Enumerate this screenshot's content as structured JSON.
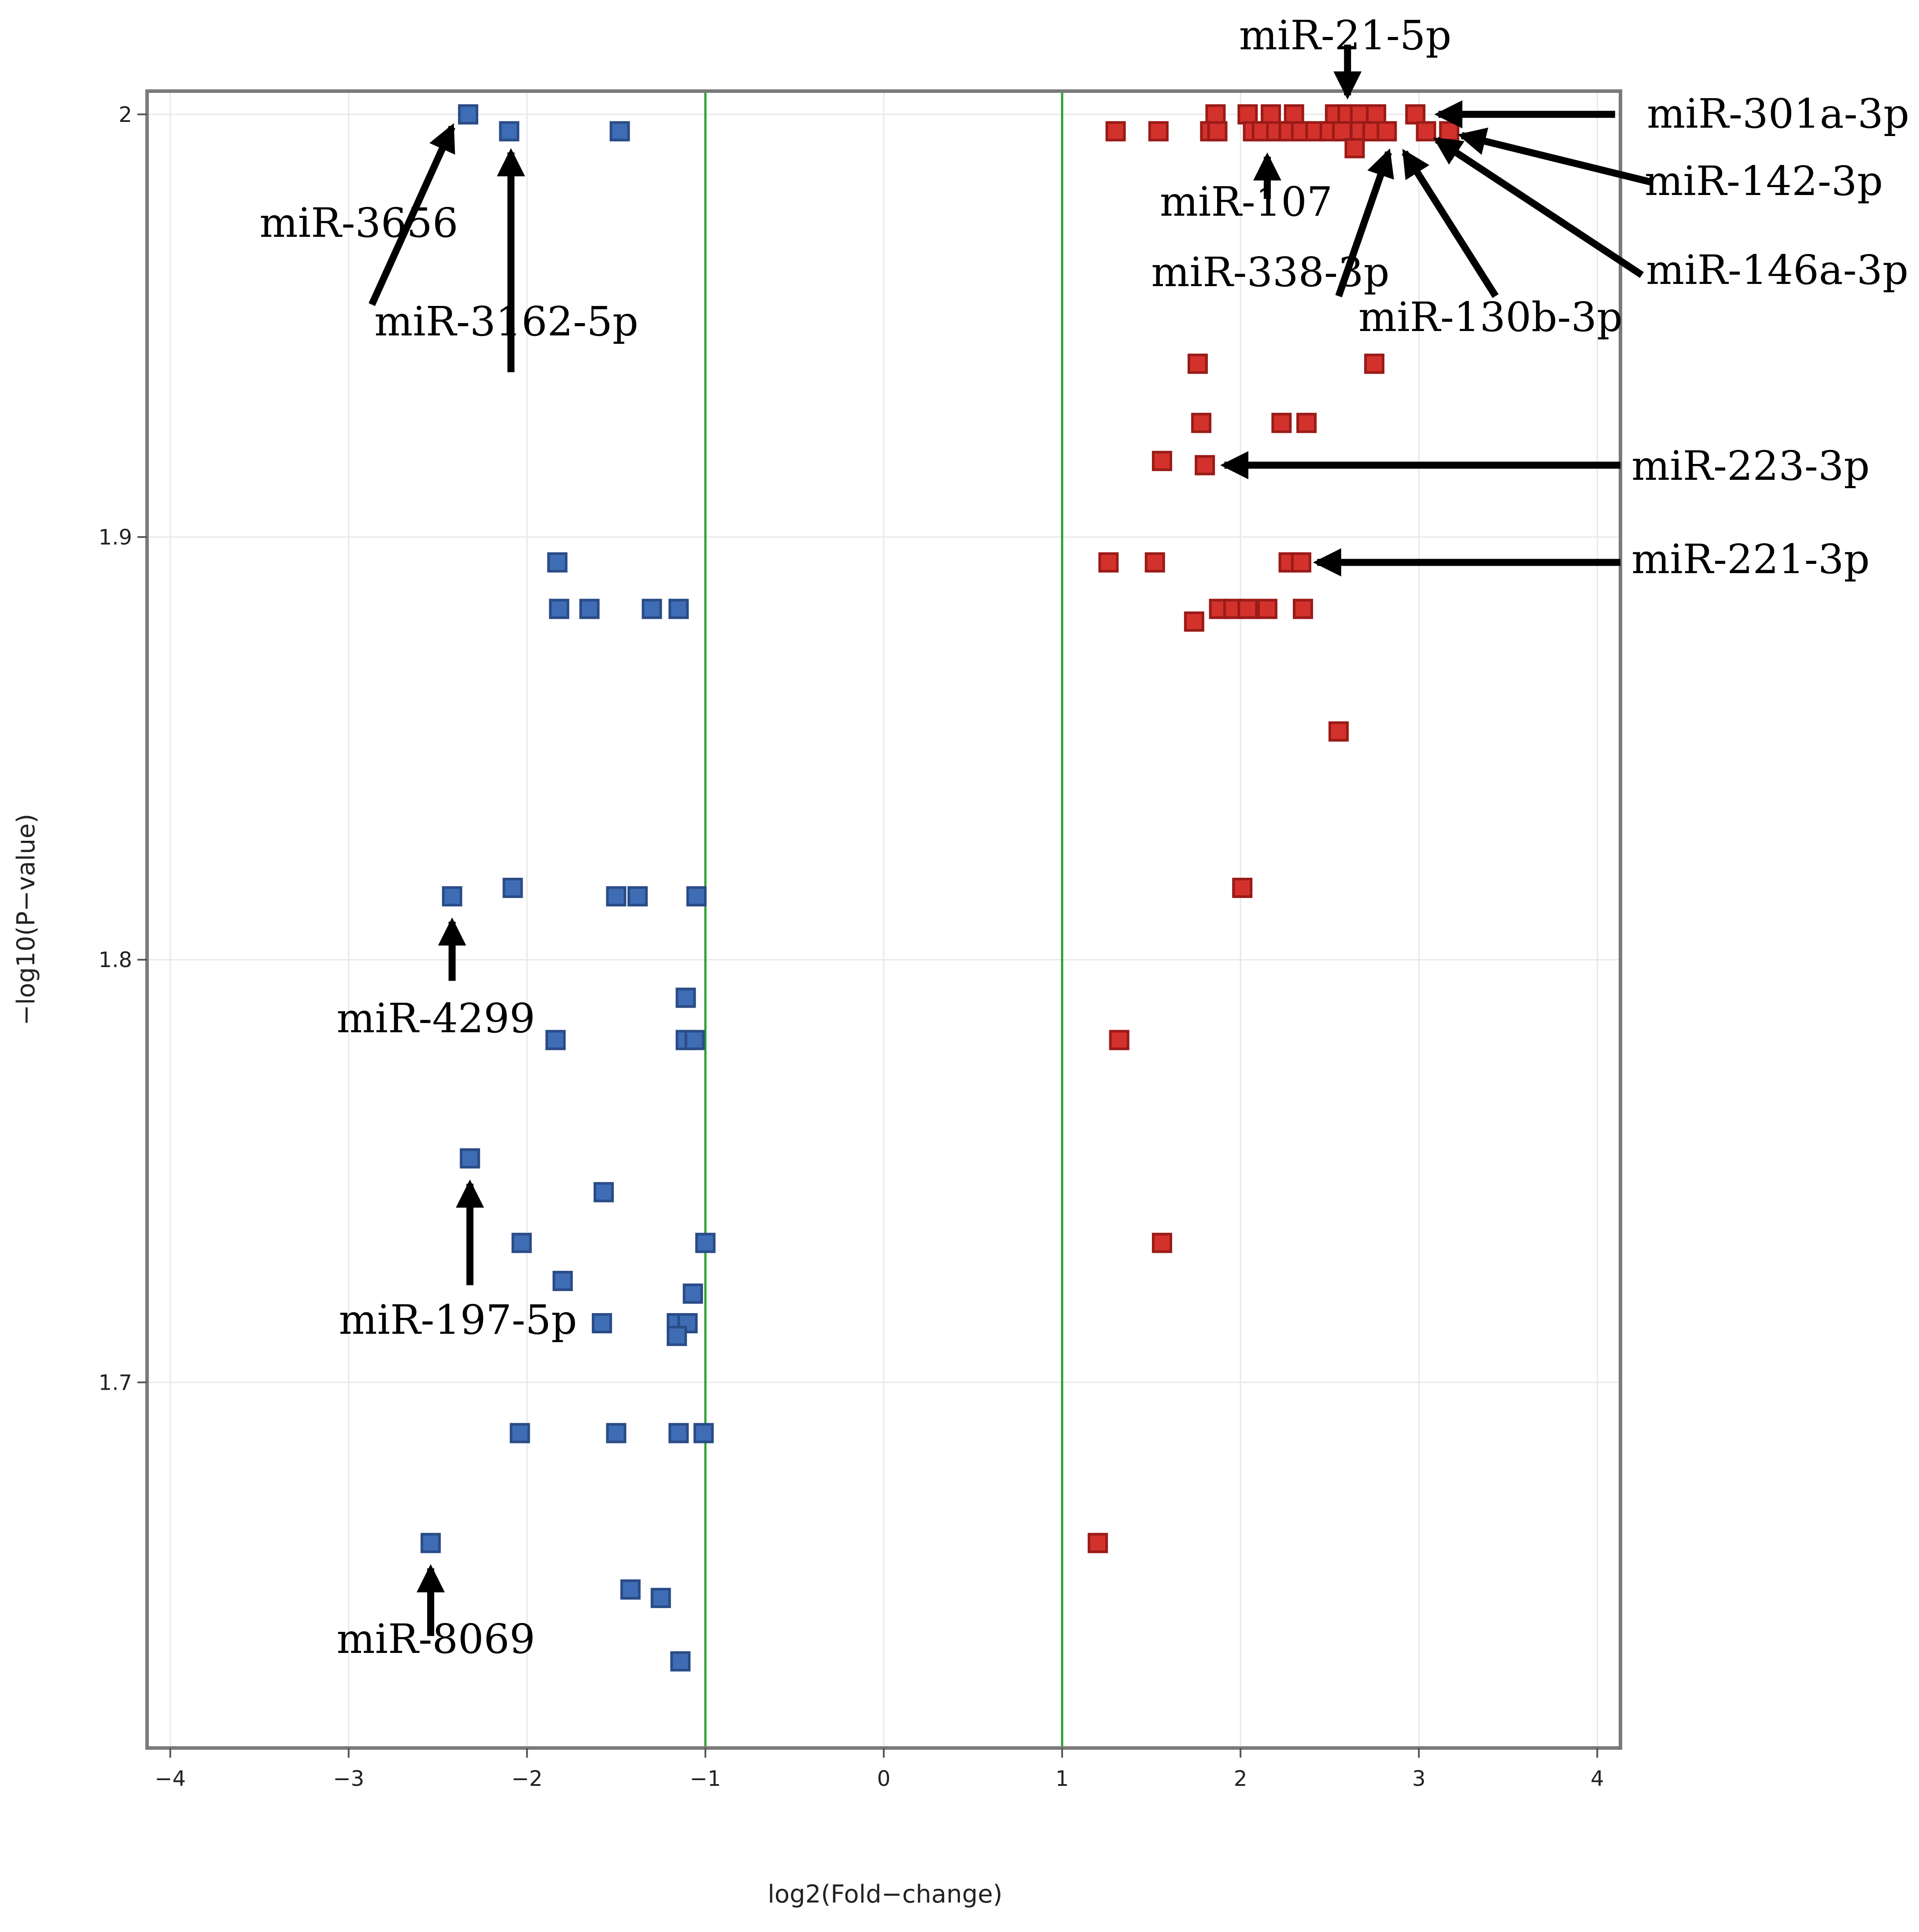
{
  "chart_data": {
    "type": "scatter",
    "title": "",
    "xlabel": "log2(Fold−change)",
    "ylabel": "−log10(P−value)",
    "xlim": [
      -4.13,
      4.13
    ],
    "ylim": [
      1.6135,
      2.0055
    ],
    "x_ticks": [
      -4,
      -3,
      -2,
      -1,
      0,
      1,
      2,
      3,
      4
    ],
    "x_tick_labels": [
      "−4",
      "−3",
      "−2",
      "−1",
      "0",
      "1",
      "2",
      "3",
      "4"
    ],
    "y_ticks": [
      1.7,
      1.8,
      1.9,
      2.0
    ],
    "y_tick_labels": [
      "1.7",
      "1.8",
      "1.9",
      "2"
    ],
    "grid": true,
    "threshold_lines": [
      -1,
      1
    ],
    "colors": {
      "down": "#3f6db5",
      "down_edge": "#2a4c87",
      "up": "#d3322c",
      "up_edge": "#9a1b17",
      "threshold": "#2ca02c",
      "grid": "#e8e8e8",
      "frame": "#7a7a7a"
    },
    "series": [
      {
        "name": "down",
        "points": [
          [
            -2.33,
            2.0
          ],
          [
            -2.1,
            1.996
          ],
          [
            -1.48,
            1.996
          ],
          [
            -1.83,
            1.894
          ],
          [
            -1.82,
            1.883
          ],
          [
            -1.65,
            1.883
          ],
          [
            -1.3,
            1.883
          ],
          [
            -1.15,
            1.883
          ],
          [
            -2.42,
            1.815
          ],
          [
            -2.08,
            1.817
          ],
          [
            -1.5,
            1.815
          ],
          [
            -1.38,
            1.815
          ],
          [
            -1.05,
            1.815
          ],
          [
            -1.11,
            1.791
          ],
          [
            -1.84,
            1.781
          ],
          [
            -1.11,
            1.781
          ],
          [
            -1.06,
            1.781
          ],
          [
            -2.32,
            1.753
          ],
          [
            -1.57,
            1.745
          ],
          [
            -2.03,
            1.733
          ],
          [
            -1.0,
            1.733
          ],
          [
            -1.8,
            1.724
          ],
          [
            -1.07,
            1.721
          ],
          [
            -1.58,
            1.714
          ],
          [
            -1.16,
            1.714
          ],
          [
            -1.1,
            1.714
          ],
          [
            -1.16,
            1.711
          ],
          [
            -2.04,
            1.688
          ],
          [
            -1.5,
            1.688
          ],
          [
            -1.15,
            1.688
          ],
          [
            -1.01,
            1.688
          ],
          [
            -2.54,
            1.662
          ],
          [
            -1.42,
            1.651
          ],
          [
            -1.25,
            1.649
          ],
          [
            -1.14,
            1.634
          ]
        ]
      },
      {
        "name": "up",
        "points": [
          [
            1.86,
            2.0
          ],
          [
            2.04,
            2.0
          ],
          [
            2.17,
            2.0
          ],
          [
            2.3,
            2.0
          ],
          [
            2.53,
            2.0
          ],
          [
            2.6,
            2.0
          ],
          [
            2.67,
            2.0
          ],
          [
            2.76,
            2.0
          ],
          [
            2.98,
            2.0
          ],
          [
            1.3,
            1.996
          ],
          [
            1.54,
            1.996
          ],
          [
            1.83,
            1.996
          ],
          [
            1.87,
            1.996
          ],
          [
            2.07,
            1.996
          ],
          [
            2.12,
            1.996
          ],
          [
            2.2,
            1.996
          ],
          [
            2.27,
            1.996
          ],
          [
            2.34,
            1.996
          ],
          [
            2.42,
            1.996
          ],
          [
            2.5,
            1.996
          ],
          [
            2.57,
            1.996
          ],
          [
            2.67,
            1.996
          ],
          [
            2.74,
            1.996
          ],
          [
            2.82,
            1.996
          ],
          [
            3.04,
            1.996
          ],
          [
            3.17,
            1.996
          ],
          [
            2.64,
            1.992
          ],
          [
            1.76,
            1.941
          ],
          [
            2.75,
            1.941
          ],
          [
            1.78,
            1.927
          ],
          [
            2.23,
            1.927
          ],
          [
            2.37,
            1.927
          ],
          [
            1.56,
            1.918
          ],
          [
            1.8,
            1.917
          ],
          [
            1.26,
            1.894
          ],
          [
            1.52,
            1.894
          ],
          [
            2.27,
            1.894
          ],
          [
            2.34,
            1.894
          ],
          [
            1.88,
            1.883
          ],
          [
            1.96,
            1.883
          ],
          [
            2.04,
            1.883
          ],
          [
            2.15,
            1.883
          ],
          [
            2.35,
            1.883
          ],
          [
            1.74,
            1.88
          ],
          [
            2.55,
            1.854
          ],
          [
            2.01,
            1.817
          ],
          [
            1.32,
            1.781
          ],
          [
            1.56,
            1.733
          ],
          [
            1.2,
            1.662
          ]
        ]
      }
    ],
    "annotations": [
      {
        "label": "miR-3656"
      },
      {
        "label": "miR-3162-5p"
      },
      {
        "label": "miR-4299"
      },
      {
        "label": "miR-197-5p"
      },
      {
        "label": "miR-8069"
      },
      {
        "label": "miR-21-5p"
      },
      {
        "label": "miR-301a-3p"
      },
      {
        "label": "miR-142-3p"
      },
      {
        "label": "miR-146a-3p"
      },
      {
        "label": "miR-107"
      },
      {
        "label": "miR-338-3p"
      },
      {
        "label": "miR-130b-3p"
      },
      {
        "label": "miR-223-3p"
      },
      {
        "label": "miR-221-3p"
      }
    ]
  }
}
